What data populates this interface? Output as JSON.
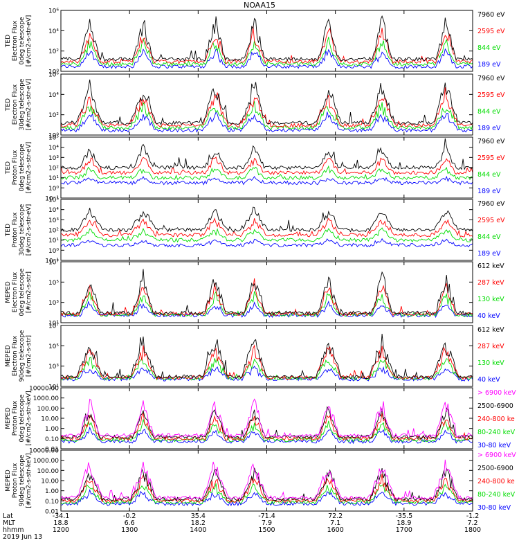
{
  "title": "NOAA15",
  "colors": {
    "black": "#000000",
    "red": "#ff0000",
    "green": "#00dd00",
    "blue": "#0000ff",
    "magenta": "#ff00ff"
  },
  "chart_data": {
    "type": "line",
    "x_ticks_hhmm": [
      "1200",
      "1300",
      "1400",
      "1500",
      "1600",
      "1700",
      "1800"
    ],
    "xlim_hhmm": [
      "1200",
      "1800"
    ],
    "ephemeris": [
      {
        "label": "Lat",
        "values": [
          "-34.1",
          "-0.2",
          "35.4",
          "-71.4",
          "72.2",
          "-35.5",
          "-1.2"
        ]
      },
      {
        "label": "MLT",
        "values": [
          "18.8",
          "6.6",
          "18.2",
          "7.9",
          "7.1",
          "18.9",
          "7.2"
        ]
      },
      {
        "label": "hhmm",
        "values": [
          "1200",
          "1300",
          "1400",
          "1500",
          "1600",
          "1700",
          "1800"
        ]
      }
    ],
    "date": "2019 Jun 13",
    "panels": [
      {
        "ylabel": [
          "TED",
          "Electron Flux",
          "0deg telescope",
          "[#/cm2-s-str-eV]"
        ],
        "scale": "log",
        "ylim": [
          1,
          1000000
        ],
        "yticks": [
          {
            "v": 1,
            "t": "10⁰"
          },
          {
            "v": 100,
            "t": "10²"
          },
          {
            "v": 10000,
            "t": "10⁴"
          },
          {
            "v": 1000000,
            "t": "10⁶"
          }
        ],
        "series": [
          {
            "name": "7960 eV",
            "color": "#000000"
          },
          {
            "name": "2595 eV",
            "color": "#ff0000"
          },
          {
            "name": "844 eV",
            "color": "#00dd00"
          },
          {
            "name": "189 eV",
            "color": "#0000ff"
          }
        ]
      },
      {
        "ylabel": [
          "TED",
          "Electron Flux",
          "30deg telescope",
          "[#/cm2-s-str-eV]"
        ],
        "scale": "log",
        "ylim": [
          1,
          1000000
        ],
        "yticks": [
          {
            "v": 1,
            "t": "10⁰"
          },
          {
            "v": 100,
            "t": "10²"
          },
          {
            "v": 10000,
            "t": "10⁴"
          },
          {
            "v": 1000000,
            "t": "10⁶"
          }
        ],
        "series": [
          {
            "name": "7960 eV",
            "color": "#000000"
          },
          {
            "name": "2595 eV",
            "color": "#ff0000"
          },
          {
            "name": "844 eV",
            "color": "#00dd00"
          },
          {
            "name": "189 eV",
            "color": "#0000ff"
          }
        ]
      },
      {
        "ylabel": [
          "TED",
          "Proton Flux",
          "0deg telescope",
          "[#/cm2-s-str-eV]"
        ],
        "scale": "log",
        "ylim": [
          0.1,
          100000
        ],
        "yticks": [
          {
            "v": 0.1,
            "t": "10⁻¹"
          },
          {
            "v": 1,
            "t": "10⁰"
          },
          {
            "v": 10,
            "t": "10¹"
          },
          {
            "v": 100,
            "t": "10²"
          },
          {
            "v": 1000,
            "t": "10³"
          },
          {
            "v": 10000,
            "t": "10⁴"
          },
          {
            "v": 100000,
            "t": "10⁵"
          }
        ],
        "series": [
          {
            "name": "7960 eV",
            "color": "#000000"
          },
          {
            "name": "2595 eV",
            "color": "#ff0000"
          },
          {
            "name": "844 eV",
            "color": "#00dd00"
          },
          {
            "name": "189 eV",
            "color": "#0000ff"
          }
        ]
      },
      {
        "ylabel": [
          "TED",
          "Proton Flux",
          "30deg telescope",
          "[#/cm2-s-str-eV]"
        ],
        "scale": "log",
        "ylim": [
          0.1,
          100000
        ],
        "yticks": [
          {
            "v": 0.1,
            "t": "10⁻¹"
          },
          {
            "v": 1,
            "t": "10⁰"
          },
          {
            "v": 10,
            "t": "10¹"
          },
          {
            "v": 100,
            "t": "10²"
          },
          {
            "v": 1000,
            "t": "10³"
          },
          {
            "v": 10000,
            "t": "10⁴"
          },
          {
            "v": 100000,
            "t": "10⁵"
          }
        ],
        "series": [
          {
            "name": "7960 eV",
            "color": "#000000"
          },
          {
            "name": "2595 eV",
            "color": "#ff0000"
          },
          {
            "name": "844 eV",
            "color": "#00dd00"
          },
          {
            "name": "189 eV",
            "color": "#0000ff"
          }
        ]
      },
      {
        "ylabel": [
          "MEPED",
          "Electron Flux",
          "0deg telescope",
          "[#/cm2-s-str]"
        ],
        "scale": "log",
        "ylim": [
          10,
          10000000
        ],
        "yticks": [
          {
            "v": 10,
            "t": "10¹"
          },
          {
            "v": 1000,
            "t": "10³"
          },
          {
            "v": 100000,
            "t": "10⁵"
          },
          {
            "v": 10000000,
            "t": "10⁷"
          }
        ],
        "series": [
          {
            "name": "612 keV",
            "color": "#000000"
          },
          {
            "name": "287 keV",
            "color": "#ff0000"
          },
          {
            "name": "130 keV",
            "color": "#00dd00"
          },
          {
            "name": "40 keV",
            "color": "#0000ff"
          }
        ]
      },
      {
        "ylabel": [
          "MEPED",
          "Electron Flux",
          "90deg telescope",
          "[#/cm2-s-str]"
        ],
        "scale": "log",
        "ylim": [
          10,
          10000000
        ],
        "yticks": [
          {
            "v": 10,
            "t": "10¹"
          },
          {
            "v": 1000,
            "t": "10³"
          },
          {
            "v": 100000,
            "t": "10⁵"
          },
          {
            "v": 10000000,
            "t": "10⁷"
          }
        ],
        "series": [
          {
            "name": "612 keV",
            "color": "#000000"
          },
          {
            "name": "287 keV",
            "color": "#ff0000"
          },
          {
            "name": "130 keV",
            "color": "#00dd00"
          },
          {
            "name": "40 keV",
            "color": "#0000ff"
          }
        ]
      },
      {
        "ylabel": [
          "MEPED",
          "Proton Flux",
          "0deg telescope",
          "[#/cm2-s-str-keV]"
        ],
        "scale": "log",
        "ylim": [
          0.01,
          10000
        ],
        "yticks": [
          {
            "v": 0.01,
            "t": "0.01"
          },
          {
            "v": 0.1,
            "t": "0.10"
          },
          {
            "v": 1,
            "t": "1.00"
          },
          {
            "v": 10,
            "t": "10.00"
          },
          {
            "v": 100,
            "t": "100.00"
          },
          {
            "v": 1000,
            "t": "1000.00"
          },
          {
            "v": 10000,
            "t": "10000.00"
          }
        ],
        "series": [
          {
            "name": "> 6900 keV",
            "color": "#ff00ff"
          },
          {
            "name": "2500-6900",
            "color": "#000000"
          },
          {
            "name": "240-800 ke",
            "color": "#ff0000"
          },
          {
            "name": "80-240 keV",
            "color": "#00dd00"
          },
          {
            "name": "30-80 keV",
            "color": "#0000ff"
          }
        ]
      },
      {
        "ylabel": [
          "MEPED",
          "Proton Flux",
          "90deg telescope",
          "[#/cm2-s-str-keV]"
        ],
        "scale": "log",
        "ylim": [
          0.01,
          10000
        ],
        "yticks": [
          {
            "v": 0.01,
            "t": "0.01"
          },
          {
            "v": 0.1,
            "t": "0.10"
          },
          {
            "v": 1,
            "t": "1.00"
          },
          {
            "v": 10,
            "t": "10.00"
          },
          {
            "v": 100,
            "t": "100.00"
          },
          {
            "v": 1000,
            "t": "1000.00"
          },
          {
            "v": 10000,
            "t": "10000.00"
          }
        ],
        "series": [
          {
            "name": "> 6900 keV",
            "color": "#ff00ff"
          },
          {
            "name": "2500-6900",
            "color": "#000000"
          },
          {
            "name": "240-800 ke",
            "color": "#ff0000"
          },
          {
            "name": "80-240 keV",
            "color": "#00dd00"
          },
          {
            "name": "30-80 keV",
            "color": "#0000ff"
          }
        ]
      }
    ]
  }
}
